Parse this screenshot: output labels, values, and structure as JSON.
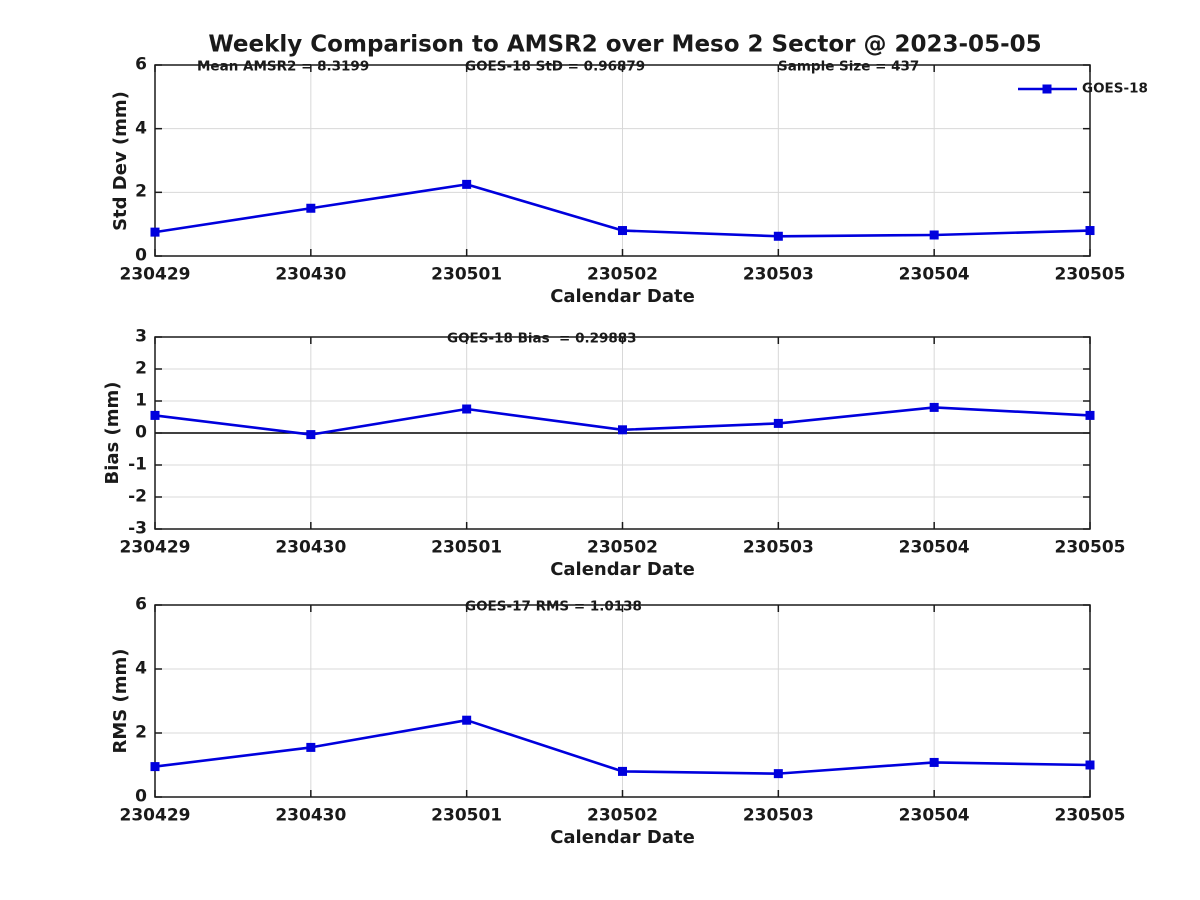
{
  "title": "Weekly Comparison to AMSR2 over Meso 2 Sector @ 2023-05-05",
  "colors": {
    "line": "#0000dd",
    "grid": "#d8d8d8",
    "axis": "#1a1a1a",
    "zero_line": "#000000",
    "text": "#1a1a1a",
    "background": "#ffffff"
  },
  "chart_data": [
    {
      "id": "stddev",
      "type": "line",
      "annotations": [
        "Mean AMSR2 = 8.3199",
        "GOES-18 StD = 0.96879",
        "Sample Size = 437"
      ],
      "categories": [
        "230429",
        "230430",
        "230501",
        "230502",
        "230503",
        "230504",
        "230505"
      ],
      "series": [
        {
          "name": "GOES-18",
          "values": [
            0.75,
            1.5,
            2.25,
            0.8,
            0.62,
            0.66,
            0.8
          ]
        }
      ],
      "xlabel": "Calendar Date",
      "ylabel": "Std Dev (mm)",
      "ylim": [
        0,
        6
      ],
      "yticks": [
        0,
        2,
        4,
        6
      ],
      "grid": true,
      "marker": "square",
      "legend": "GOES-18",
      "legend_position": "outside-top-right",
      "zero_line": false
    },
    {
      "id": "bias",
      "type": "line",
      "annotations": [
        "GOES-18 Bias  = 0.29883"
      ],
      "categories": [
        "230429",
        "230430",
        "230501",
        "230502",
        "230503",
        "230504",
        "230505"
      ],
      "series": [
        {
          "name": "GOES-18",
          "values": [
            0.55,
            -0.05,
            0.75,
            0.1,
            0.3,
            0.8,
            0.55
          ]
        }
      ],
      "xlabel": "Calendar Date",
      "ylabel": "Bias (mm)",
      "ylim": [
        -3,
        3
      ],
      "yticks": [
        -3,
        -2,
        -1,
        0,
        1,
        2,
        3
      ],
      "grid": true,
      "marker": "square",
      "legend": null,
      "zero_line": true
    },
    {
      "id": "rms",
      "type": "line",
      "annotations": [
        "GOES-17 RMS = 1.0138"
      ],
      "categories": [
        "230429",
        "230430",
        "230501",
        "230502",
        "230503",
        "230504",
        "230505"
      ],
      "series": [
        {
          "name": "GOES-18",
          "values": [
            0.95,
            1.55,
            2.4,
            0.8,
            0.73,
            1.08,
            1.0
          ]
        }
      ],
      "xlabel": "Calendar Date",
      "ylabel": "RMS (mm)",
      "ylim": [
        0,
        6
      ],
      "yticks": [
        0,
        2,
        4,
        6
      ],
      "grid": true,
      "marker": "square",
      "legend": null,
      "zero_line": false
    }
  ]
}
